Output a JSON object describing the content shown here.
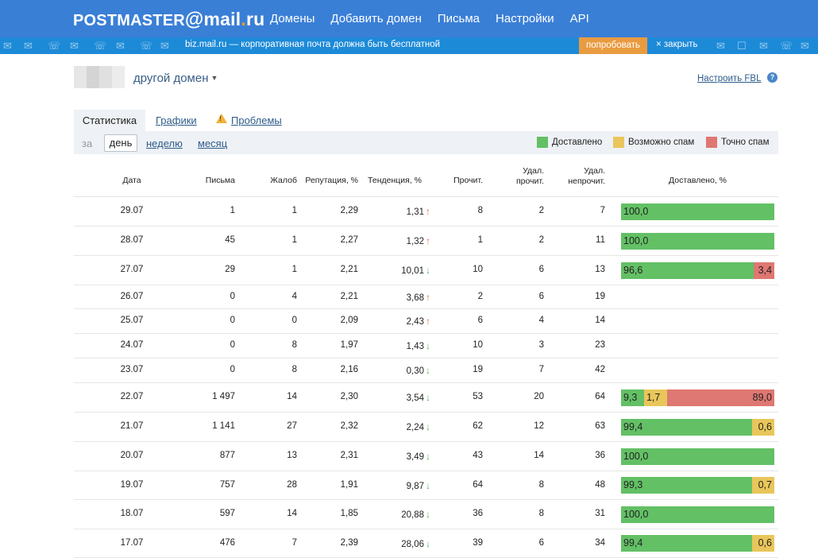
{
  "header": {
    "logo_prefix": "POSTMASTER",
    "logo_at": "@",
    "logo_mail": "mail",
    "logo_dot": ".",
    "logo_tld": "ru",
    "nav": [
      "Домены",
      "Добавить домен",
      "Письма",
      "Настройки",
      "API"
    ]
  },
  "promo": {
    "text": "biz.mail.ru — корпоративная почта должна быть бесплатной",
    "try_label": "попробовать",
    "close_label": "× закрыть"
  },
  "domain": {
    "name": "другой домен",
    "fbl_label": "Настроить FBL",
    "help_glyph": "?"
  },
  "tabs": {
    "active": "Статистика",
    "graphs": "Графики",
    "problems": "Проблемы"
  },
  "period": {
    "label": "за",
    "day": "день",
    "week": "неделю",
    "month": "месяц"
  },
  "legend": {
    "delivered": "Доставлено",
    "maybe_spam": "Возможно спам",
    "spam": "Точно спам"
  },
  "colors": {
    "header": "#3a7fd6",
    "delivered": "#63c065",
    "maybe_spam": "#e9c65a",
    "spam": "#df7772",
    "trend_up": "#e06a4a",
    "trend_down": "#5cb25c"
  },
  "table": {
    "headers": {
      "date": "Дата",
      "letters": "Письма",
      "complaints": "Жалоб",
      "reputation": "Репутация, %",
      "trend": "Тенденция, %",
      "read": "Прочит.",
      "del_read_1": "Удал.",
      "del_read_2": "прочит.",
      "del_unread_1": "Удал.",
      "del_unread_2": "непрочит.",
      "delivered": "Доставлено, %"
    },
    "rows": [
      {
        "date": "29.07",
        "letters": "1",
        "complaints": "1",
        "reputation": "2,29",
        "trend": "1,31",
        "dir": "up",
        "read": "8",
        "del_read": "2",
        "del_unread": "7",
        "bar": [
          {
            "kind": "green",
            "pct": 100,
            "label": "100,0"
          }
        ]
      },
      {
        "date": "28.07",
        "letters": "45",
        "complaints": "1",
        "reputation": "2,27",
        "trend": "1,32",
        "dir": "up",
        "read": "1",
        "del_read": "2",
        "del_unread": "11",
        "bar": [
          {
            "kind": "green",
            "pct": 100,
            "label": "100,0"
          }
        ]
      },
      {
        "date": "27.07",
        "letters": "29",
        "complaints": "1",
        "reputation": "2,21",
        "trend": "10,01",
        "dir": "down",
        "read": "10",
        "del_read": "6",
        "del_unread": "13",
        "bar": [
          {
            "kind": "green",
            "pct": 86.5,
            "label": "96,6"
          },
          {
            "kind": "red",
            "pct": 13.5,
            "label": "3,4"
          }
        ]
      },
      {
        "date": "26.07",
        "letters": "0",
        "complaints": "4",
        "reputation": "2,21",
        "trend": "3,68",
        "dir": "up",
        "read": "2",
        "del_read": "6",
        "del_unread": "19",
        "bar": []
      },
      {
        "date": "25.07",
        "letters": "0",
        "complaints": "0",
        "reputation": "2,09",
        "trend": "2,43",
        "dir": "up",
        "read": "6",
        "del_read": "4",
        "del_unread": "14",
        "bar": []
      },
      {
        "date": "24.07",
        "letters": "0",
        "complaints": "8",
        "reputation": "1,97",
        "trend": "1,43",
        "dir": "down",
        "read": "10",
        "del_read": "3",
        "del_unread": "23",
        "bar": []
      },
      {
        "date": "23.07",
        "letters": "0",
        "complaints": "8",
        "reputation": "2,16",
        "trend": "0,30",
        "dir": "down",
        "read": "19",
        "del_read": "7",
        "del_unread": "42",
        "bar": []
      },
      {
        "date": "22.07",
        "letters": "1 497",
        "complaints": "14",
        "reputation": "2,30",
        "trend": "3,54",
        "dir": "down",
        "read": "53",
        "del_read": "20",
        "del_unread": "64",
        "bar": [
          {
            "kind": "green",
            "pct": 15,
            "label": "9,3"
          },
          {
            "kind": "yellow",
            "pct": 15,
            "label": "1,7"
          },
          {
            "kind": "red",
            "pct": 70,
            "label": "89,0"
          }
        ]
      },
      {
        "date": "21.07",
        "letters": "1 141",
        "complaints": "27",
        "reputation": "2,32",
        "trend": "2,24",
        "dir": "down",
        "read": "62",
        "del_read": "12",
        "del_unread": "63",
        "bar": [
          {
            "kind": "green",
            "pct": 85.5,
            "label": "99,4"
          },
          {
            "kind": "yellow",
            "pct": 14.5,
            "label": "0,6"
          }
        ]
      },
      {
        "date": "20.07",
        "letters": "877",
        "complaints": "13",
        "reputation": "2,31",
        "trend": "3,49",
        "dir": "down",
        "read": "43",
        "del_read": "14",
        "del_unread": "36",
        "bar": [
          {
            "kind": "green",
            "pct": 100,
            "label": "100,0"
          }
        ]
      },
      {
        "date": "19.07",
        "letters": "757",
        "complaints": "28",
        "reputation": "1,91",
        "trend": "9,87",
        "dir": "down",
        "read": "64",
        "del_read": "8",
        "del_unread": "48",
        "bar": [
          {
            "kind": "green",
            "pct": 85.5,
            "label": "99,3"
          },
          {
            "kind": "yellow",
            "pct": 14.5,
            "label": "0,7"
          }
        ]
      },
      {
        "date": "18.07",
        "letters": "597",
        "complaints": "14",
        "reputation": "1,85",
        "trend": "20,88",
        "dir": "down",
        "read": "36",
        "del_read": "8",
        "del_unread": "31",
        "bar": [
          {
            "kind": "green",
            "pct": 100,
            "label": "100,0"
          }
        ]
      },
      {
        "date": "17.07",
        "letters": "476",
        "complaints": "7",
        "reputation": "2,39",
        "trend": "28,06",
        "dir": "down",
        "read": "39",
        "del_read": "6",
        "del_unread": "34",
        "bar": [
          {
            "kind": "green",
            "pct": 85.5,
            "label": "99,4"
          },
          {
            "kind": "yellow",
            "pct": 14.5,
            "label": "0,6"
          }
        ]
      }
    ]
  }
}
